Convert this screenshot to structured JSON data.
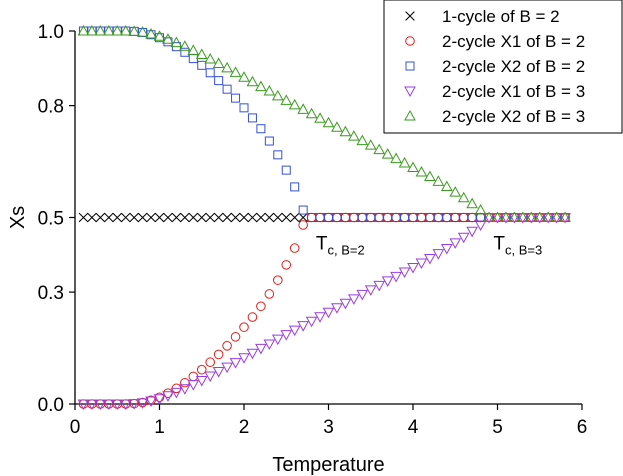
{
  "chart_data": {
    "type": "scatter",
    "xlabel": "Temperature",
    "ylabel": "Xs",
    "xlim": [
      0,
      6
    ],
    "ylim": [
      0,
      1.0
    ],
    "xticks": [
      "0",
      "1",
      "2",
      "3",
      "4",
      "5",
      "6"
    ],
    "yticks": [
      "0.0",
      "0.3",
      "0.5",
      "0.8",
      "1.0"
    ],
    "ytick_values": [
      0.0,
      0.3,
      0.5,
      0.8,
      1.0
    ],
    "legend_position": "top-right",
    "annotations": [
      {
        "main": "T",
        "sub": "c, B=2",
        "x": 2.78,
        "y": 0.5
      },
      {
        "main": "T",
        "sub": "c, B=3",
        "x": 4.88,
        "y": 0.5
      }
    ],
    "series": [
      {
        "name": "1-cycle of B = 2",
        "marker": "x",
        "color": "#000000",
        "x": [
          0.1,
          0.2,
          0.3,
          0.4,
          0.5,
          0.6,
          0.7,
          0.8,
          0.9,
          1.0,
          1.1,
          1.2,
          1.3,
          1.4,
          1.5,
          1.6,
          1.7,
          1.8,
          1.9,
          2.0,
          2.1,
          2.2,
          2.3,
          2.4,
          2.5,
          2.6,
          2.7
        ],
        "y": [
          0.5,
          0.5,
          0.5,
          0.5,
          0.5,
          0.5,
          0.5,
          0.5,
          0.5,
          0.5,
          0.5,
          0.5,
          0.5,
          0.5,
          0.5,
          0.5,
          0.5,
          0.5,
          0.5,
          0.5,
          0.5,
          0.5,
          0.5,
          0.5,
          0.5,
          0.5,
          0.5
        ]
      },
      {
        "name": "2-cycle X1 of B = 2",
        "marker": "circle",
        "color": "#e0201a",
        "x": [
          0.1,
          0.2,
          0.3,
          0.4,
          0.5,
          0.6,
          0.7,
          0.8,
          0.9,
          1.0,
          1.1,
          1.2,
          1.3,
          1.4,
          1.5,
          1.6,
          1.7,
          1.8,
          1.9,
          2.0,
          2.1,
          2.2,
          2.3,
          2.4,
          2.5,
          2.6,
          2.7,
          2.8,
          2.9,
          3.0,
          3.1,
          3.2,
          3.3,
          3.4,
          3.5,
          3.6,
          3.7,
          3.8,
          3.9,
          4.0,
          4.1,
          4.2,
          4.3,
          4.4,
          4.5,
          4.6,
          4.7,
          4.8,
          4.9,
          5.0,
          5.1,
          5.2,
          5.3,
          5.4,
          5.5,
          5.6,
          5.7,
          5.8
        ],
        "y": [
          0.0,
          0.0,
          0.0,
          0.0,
          0.0,
          0.0,
          0.001,
          0.004,
          0.01,
          0.018,
          0.029,
          0.042,
          0.057,
          0.074,
          0.092,
          0.112,
          0.133,
          0.156,
          0.18,
          0.206,
          0.233,
          0.262,
          0.295,
          0.332,
          0.373,
          0.418,
          0.48,
          0.5,
          0.5,
          0.5,
          0.5,
          0.5,
          0.5,
          0.5,
          0.5,
          0.5,
          0.5,
          0.5,
          0.5,
          0.5,
          0.5,
          0.5,
          0.5,
          0.5,
          0.5,
          0.5,
          0.5,
          0.5,
          0.5,
          0.5,
          0.5,
          0.5,
          0.5,
          0.5,
          0.5,
          0.5,
          0.5,
          0.5
        ]
      },
      {
        "name": "2-cycle X2 of B = 2",
        "marker": "square",
        "color": "#3550d8",
        "x": [
          0.1,
          0.2,
          0.3,
          0.4,
          0.5,
          0.6,
          0.7,
          0.8,
          0.9,
          1.0,
          1.1,
          1.2,
          1.3,
          1.4,
          1.5,
          1.6,
          1.7,
          1.8,
          1.9,
          2.0,
          2.1,
          2.2,
          2.3,
          2.4,
          2.5,
          2.6,
          2.7,
          2.8,
          2.9,
          3.0,
          3.1,
          3.2,
          3.3,
          3.4,
          3.5,
          3.6,
          3.7,
          3.8,
          3.9,
          4.0,
          4.1,
          4.2,
          4.3,
          4.4,
          4.5,
          4.6,
          4.7,
          4.8,
          4.9,
          5.0,
          5.1,
          5.2,
          5.3,
          5.4,
          5.5,
          5.6,
          5.7,
          5.8
        ],
        "y": [
          1.0,
          1.0,
          1.0,
          1.0,
          1.0,
          1.0,
          0.999,
          0.996,
          0.99,
          0.982,
          0.971,
          0.958,
          0.943,
          0.926,
          0.908,
          0.888,
          0.867,
          0.844,
          0.82,
          0.794,
          0.767,
          0.738,
          0.705,
          0.668,
          0.627,
          0.582,
          0.52,
          0.5,
          0.5,
          0.5,
          0.5,
          0.5,
          0.5,
          0.5,
          0.5,
          0.5,
          0.5,
          0.5,
          0.5,
          0.5,
          0.5,
          0.5,
          0.5,
          0.5,
          0.5,
          0.5,
          0.5,
          0.5,
          0.5,
          0.5,
          0.5,
          0.5,
          0.5,
          0.5,
          0.5,
          0.5,
          0.5,
          0.5
        ]
      },
      {
        "name": "2-cycle X1 of B = 3",
        "marker": "triangle-down",
        "color": "#9a3ce0",
        "x": [
          0.1,
          0.2,
          0.3,
          0.4,
          0.5,
          0.6,
          0.7,
          0.8,
          0.9,
          1.0,
          1.1,
          1.2,
          1.3,
          1.4,
          1.5,
          1.6,
          1.7,
          1.8,
          1.9,
          2.0,
          2.1,
          2.2,
          2.3,
          2.4,
          2.5,
          2.6,
          2.7,
          2.8,
          2.9,
          3.0,
          3.1,
          3.2,
          3.3,
          3.4,
          3.5,
          3.6,
          3.7,
          3.8,
          3.9,
          4.0,
          4.1,
          4.2,
          4.3,
          4.4,
          4.5,
          4.6,
          4.7,
          4.8,
          4.9,
          5.0,
          5.1,
          5.2,
          5.3,
          5.4,
          5.5,
          5.6,
          5.7,
          5.8
        ],
        "y": [
          0.0,
          0.0,
          0.0,
          0.0,
          0.0,
          0.0,
          0.001,
          0.003,
          0.008,
          0.014,
          0.022,
          0.031,
          0.041,
          0.052,
          0.063,
          0.075,
          0.087,
          0.099,
          0.111,
          0.124,
          0.136,
          0.149,
          0.161,
          0.174,
          0.186,
          0.198,
          0.21,
          0.222,
          0.234,
          0.246,
          0.258,
          0.27,
          0.282,
          0.294,
          0.306,
          0.318,
          0.33,
          0.342,
          0.354,
          0.366,
          0.378,
          0.39,
          0.403,
          0.417,
          0.432,
          0.447,
          0.463,
          0.48,
          0.5,
          0.5,
          0.5,
          0.5,
          0.5,
          0.5,
          0.5,
          0.5,
          0.5,
          0.5
        ]
      },
      {
        "name": "2-cycle X2 of B = 3",
        "marker": "triangle-up",
        "color": "#3a9a1e",
        "x": [
          0.1,
          0.2,
          0.3,
          0.4,
          0.5,
          0.6,
          0.7,
          0.8,
          0.9,
          1.0,
          1.1,
          1.2,
          1.3,
          1.4,
          1.5,
          1.6,
          1.7,
          1.8,
          1.9,
          2.0,
          2.1,
          2.2,
          2.3,
          2.4,
          2.5,
          2.6,
          2.7,
          2.8,
          2.9,
          3.0,
          3.1,
          3.2,
          3.3,
          3.4,
          3.5,
          3.6,
          3.7,
          3.8,
          3.9,
          4.0,
          4.1,
          4.2,
          4.3,
          4.4,
          4.5,
          4.6,
          4.7,
          4.8,
          4.9,
          5.0,
          5.1,
          5.2,
          5.3,
          5.4,
          5.5,
          5.6,
          5.7,
          5.8
        ],
        "y": [
          1.0,
          1.0,
          1.0,
          1.0,
          1.0,
          1.0,
          0.999,
          0.997,
          0.992,
          0.986,
          0.978,
          0.969,
          0.959,
          0.948,
          0.937,
          0.925,
          0.913,
          0.901,
          0.889,
          0.876,
          0.864,
          0.851,
          0.839,
          0.826,
          0.814,
          0.802,
          0.79,
          0.778,
          0.766,
          0.754,
          0.742,
          0.73,
          0.718,
          0.706,
          0.694,
          0.682,
          0.67,
          0.658,
          0.646,
          0.634,
          0.622,
          0.61,
          0.597,
          0.583,
          0.568,
          0.553,
          0.537,
          0.52,
          0.5,
          0.5,
          0.5,
          0.5,
          0.5,
          0.5,
          0.5,
          0.5,
          0.5,
          0.5
        ]
      }
    ]
  }
}
